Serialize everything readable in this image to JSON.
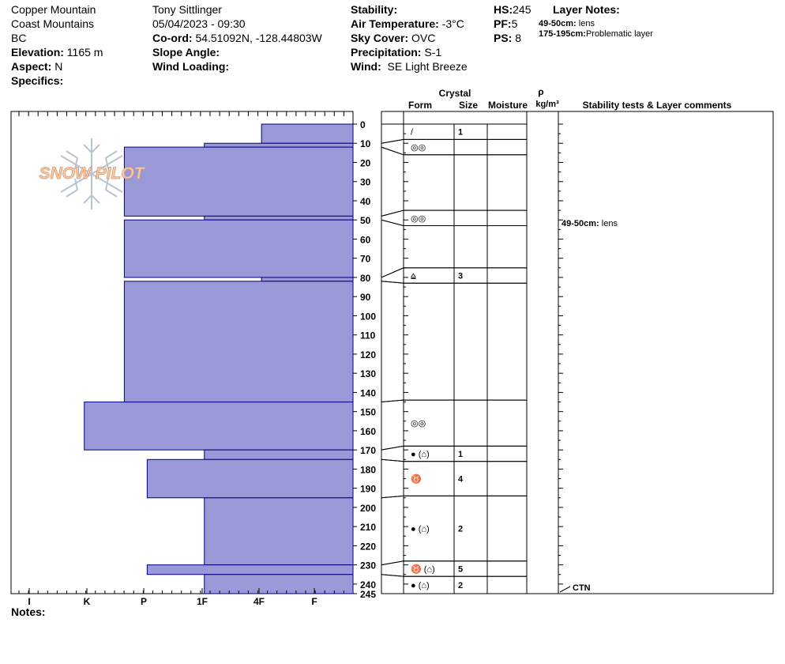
{
  "header": {
    "location": "Copper Mountain",
    "range": "Coast Mountains",
    "region": "BC",
    "elevation_label": "Elevation:",
    "elevation": "1165 m",
    "aspect_label": "Aspect:",
    "aspect": "N",
    "specifics_label": "Specifics:",
    "observer": "Tony Sittlinger",
    "datetime": "05/04/2023 - 09:30",
    "coord_label": "Co-ord:",
    "coord": "54.51092N, -128.44803W",
    "slope_label": "Slope Angle:",
    "wind_loading_label": "Wind Loading:",
    "stability_label": "Stability:",
    "air_temp_label": "Air Temperature:",
    "air_temp": "-3°C",
    "sky_label": "Sky Cover:",
    "sky": "OVC",
    "precip_label": "Precipitation:",
    "precip": "S-1",
    "wind_label": "Wind:",
    "wind": "SE Light Breeze",
    "hs_label": "HS:",
    "hs": "245",
    "pf_label": "PF:",
    "pf": "5",
    "ps_label": "PS:",
    "ps": "8",
    "layer_notes_title": "Layer Notes:",
    "layer_notes": [
      {
        "range": "49-50cm:",
        "text": "lens"
      },
      {
        "range": "175-195cm:",
        "text": "Problematic layer"
      }
    ],
    "notes_label": "Notes:"
  },
  "logo_text": "SNOW PILOT",
  "columns": {
    "crystal": "Crystal",
    "form": "Form",
    "size": "Size",
    "moisture": "Moisture",
    "rho": "ρ",
    "density_unit": "kg/m³",
    "stability_comments": "Stability tests & Layer comments"
  },
  "colors": {
    "fill": "#9999d8",
    "stroke": "#000080"
  },
  "chart_data": {
    "type": "bar",
    "orientation": "horizontal",
    "depth_axis": {
      "range": [
        0,
        245
      ],
      "ticks": [
        0,
        10,
        20,
        30,
        40,
        50,
        60,
        70,
        80,
        90,
        100,
        110,
        120,
        130,
        140,
        150,
        160,
        170,
        180,
        190,
        200,
        210,
        220,
        230,
        240,
        245
      ]
    },
    "hardness_axis": {
      "categories": [
        "I",
        "K",
        "P",
        "1F",
        "4F",
        "F"
      ],
      "range": [
        0,
        6
      ]
    },
    "layers": [
      {
        "top": 0,
        "bottom": 10,
        "hardness": 1.6
      },
      {
        "top": 10,
        "bottom": 12,
        "hardness": 2.6
      },
      {
        "top": 12,
        "bottom": 48,
        "hardness": 4.0
      },
      {
        "top": 48,
        "bottom": 50,
        "hardness": 2.6
      },
      {
        "top": 50,
        "bottom": 80,
        "hardness": 4.0
      },
      {
        "top": 80,
        "bottom": 82,
        "hardness": 1.6
      },
      {
        "top": 82,
        "bottom": 145,
        "hardness": 4.0
      },
      {
        "top": 145,
        "bottom": 170,
        "hardness": 4.7
      },
      {
        "top": 170,
        "bottom": 175,
        "hardness": 2.6
      },
      {
        "top": 175,
        "bottom": 195,
        "hardness": 3.6
      },
      {
        "top": 195,
        "bottom": 230,
        "hardness": 2.6
      },
      {
        "top": 230,
        "bottom": 235,
        "hardness": 3.6
      },
      {
        "top": 235,
        "bottom": 245,
        "hardness": 2.6
      }
    ],
    "crystal_rows": [
      {
        "top": 0,
        "bottom": 8,
        "form": "/",
        "size": "1",
        "depth_from": 0,
        "depth_to": 10
      },
      {
        "top": 8,
        "bottom": 16,
        "form": "◎◎",
        "size": "",
        "depth_from": 10,
        "depth_to": 12
      },
      {
        "top": 16,
        "bottom": 45,
        "form": "",
        "size": "",
        "depth_from": 12,
        "depth_to": 48
      },
      {
        "top": 45,
        "bottom": 53,
        "form": "◎◎",
        "size": "",
        "depth_from": 48,
        "depth_to": 50
      },
      {
        "top": 53,
        "bottom": 75,
        "form": "",
        "size": "",
        "depth_from": 50,
        "depth_to": 80
      },
      {
        "top": 75,
        "bottom": 83,
        "form": "⩠",
        "size": "3",
        "depth_from": 80,
        "depth_to": 82
      },
      {
        "top": 83,
        "bottom": 144,
        "form": "",
        "size": "",
        "depth_from": 82,
        "depth_to": 145
      },
      {
        "top": 144,
        "bottom": 168,
        "form": "◎◎",
        "size": "",
        "depth_from": 145,
        "depth_to": 170
      },
      {
        "top": 168,
        "bottom": 176,
        "form": "● (⌂)",
        "size": "1",
        "depth_from": 170,
        "depth_to": 175
      },
      {
        "top": 176,
        "bottom": 194,
        "form": "♉",
        "size": "4",
        "depth_from": 175,
        "depth_to": 195
      },
      {
        "top": 194,
        "bottom": 228,
        "form": "● (⌂)",
        "size": "2",
        "depth_from": 195,
        "depth_to": 230
      },
      {
        "top": 228,
        "bottom": 236,
        "form": "♉ (⌂)",
        "size": "5",
        "depth_from": 230,
        "depth_to": 235
      },
      {
        "top": 236,
        "bottom": 245,
        "form": "● (⌂)",
        "size": "2",
        "depth_from": 235,
        "depth_to": 245
      }
    ],
    "comments": [
      {
        "depth": 50,
        "range": "49-50cm:",
        "text": "lens"
      },
      {
        "depth": 245,
        "range": "",
        "text": "CTN"
      }
    ]
  }
}
